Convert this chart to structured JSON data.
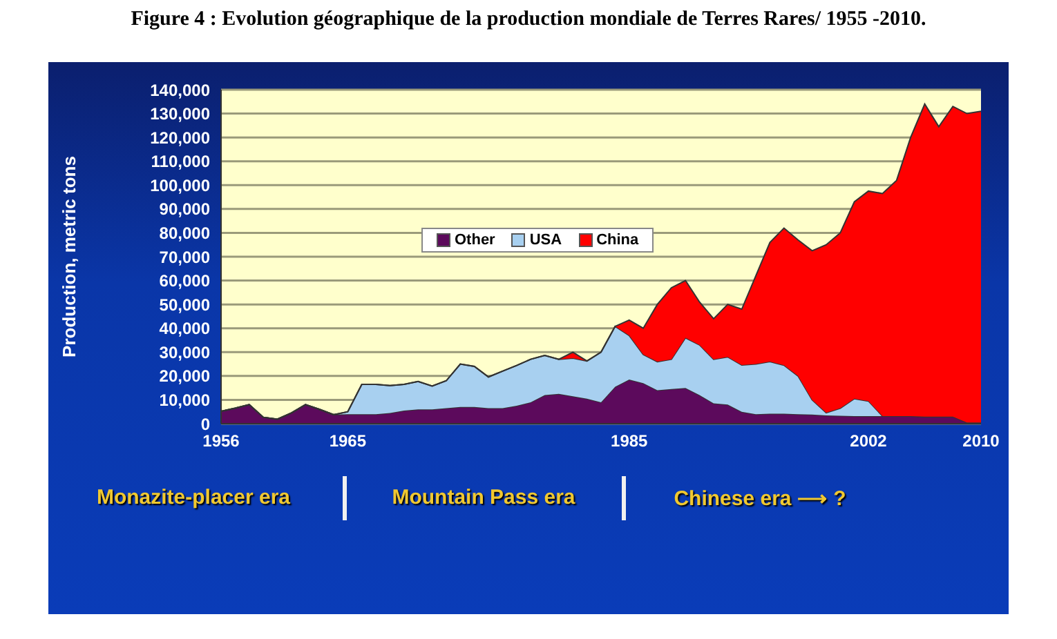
{
  "chart_data": {
    "type": "area",
    "stacked": true,
    "title": "Figure  4 : Evolution géographique de la production mondiale de Terres Rares/ 1955 -2010.",
    "ylabel": "Production, metric tons",
    "x": [
      1956,
      1957,
      1958,
      1959,
      1960,
      1961,
      1962,
      1963,
      1964,
      1965,
      1966,
      1967,
      1968,
      1969,
      1970,
      1971,
      1972,
      1973,
      1974,
      1975,
      1976,
      1977,
      1978,
      1979,
      1980,
      1981,
      1982,
      1983,
      1984,
      1985,
      1986,
      1987,
      1988,
      1989,
      1990,
      1991,
      1992,
      1993,
      1994,
      1995,
      1996,
      1997,
      1998,
      1999,
      2000,
      2001,
      2002,
      2003,
      2004,
      2005,
      2006,
      2007,
      2008,
      2009,
      2010
    ],
    "series": [
      {
        "name": "Other",
        "color": "#5c0a5c",
        "values": [
          5200,
          6500,
          8000,
          2700,
          1900,
          4500,
          8000,
          6000,
          3800,
          4000,
          4000,
          4000,
          4500,
          5500,
          6000,
          6000,
          6500,
          7000,
          7000,
          6500,
          6500,
          7500,
          9000,
          12000,
          12500,
          11500,
          10500,
          9000,
          15500,
          18500,
          17000,
          14000,
          14500,
          15000,
          12000,
          8500,
          8000,
          5000,
          4000,
          4200,
          4200,
          4000,
          3800,
          3500,
          3300,
          3200,
          3200,
          3200,
          3200,
          3200,
          3000,
          3000,
          3000,
          500,
          500
        ]
      },
      {
        "name": "USA",
        "color": "#a8d0f0",
        "values": [
          0,
          0,
          0,
          0,
          0,
          0,
          0,
          0,
          0,
          1000,
          12500,
          12500,
          11500,
          11000,
          11700,
          9800,
          11500,
          18000,
          17000,
          13100,
          15500,
          16900,
          18000,
          16600,
          14500,
          16000,
          15800,
          21000,
          25300,
          18500,
          12000,
          12000,
          12500,
          21000,
          21000,
          18500,
          20000,
          19600,
          21000,
          21800,
          20300,
          16000,
          6200,
          1100,
          3200,
          7300,
          6300,
          0,
          0,
          0,
          0,
          0,
          0,
          0,
          0
        ]
      },
      {
        "name": "China",
        "color": "#ff0000",
        "values": [
          0,
          0,
          0,
          0,
          0,
          0,
          0,
          0,
          0,
          0,
          0,
          0,
          0,
          0,
          0,
          0,
          0,
          0,
          0,
          0,
          0,
          0,
          0,
          0,
          0,
          2500,
          0,
          0,
          0,
          6400,
          11000,
          24000,
          30000,
          24000,
          18000,
          17000,
          22000,
          23400,
          37000,
          50000,
          57500,
          57000,
          62500,
          70400,
          73500,
          82500,
          88000,
          93300,
          98800,
          116800,
          131000,
          121500,
          130000,
          129500,
          130500
        ]
      }
    ],
    "xlim": [
      1956,
      2010
    ],
    "xticks": [
      1956,
      1965,
      1985,
      2002,
      2010
    ],
    "ylim": [
      0,
      140000
    ],
    "yticks": [
      0,
      {
        "value": 10000,
        "label": "10,000"
      },
      {
        "value": 20000,
        "label": "20,000"
      },
      {
        "value": 30000,
        "label": "30,000"
      },
      {
        "value": 40000,
        "label": "40,000"
      },
      {
        "value": 50000,
        "label": "50,000"
      },
      {
        "value": 60000,
        "label": "60,000"
      },
      {
        "value": 70000,
        "label": "70,000"
      },
      {
        "value": 80000,
        "label": "80,000"
      },
      {
        "value": 90000,
        "label": "90,000"
      },
      {
        "value": 100000,
        "label": "100,000"
      },
      {
        "value": 110000,
        "label": "110,000"
      },
      {
        "value": 120000,
        "label": "120,000"
      },
      {
        "value": 130000,
        "label": "130,000"
      },
      {
        "value": 140000,
        "label": "140,000"
      }
    ],
    "grid": "y",
    "legend": "top",
    "annotations": [
      "Monazite-placer era",
      "Mountain Pass era",
      "Chinese era ⟶ ?"
    ]
  }
}
